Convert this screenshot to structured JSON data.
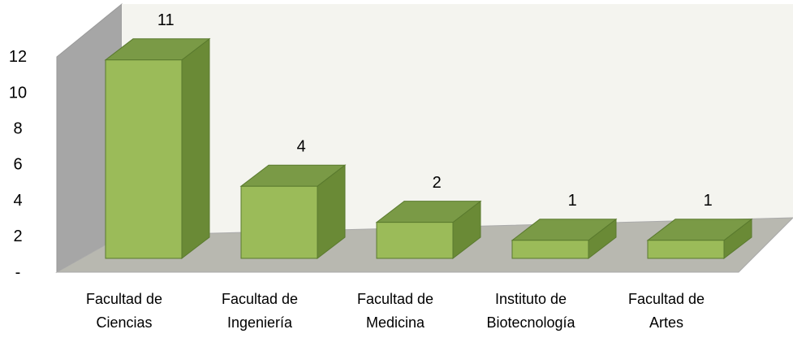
{
  "chart_data": {
    "type": "bar3d",
    "categories": [
      "Facultad de Ciencias",
      "Facultad de Ingeniería",
      "Facultad de Medicina",
      "Instituto de Biotecnología",
      "Facultad de Artes"
    ],
    "values": [
      11,
      4,
      2,
      1,
      1
    ],
    "color": "#9bbb59",
    "ylim": [
      0,
      12
    ],
    "yticks": [
      {
        "value": 0,
        "label": "-"
      },
      2,
      4,
      6,
      8,
      10,
      12
    ]
  }
}
